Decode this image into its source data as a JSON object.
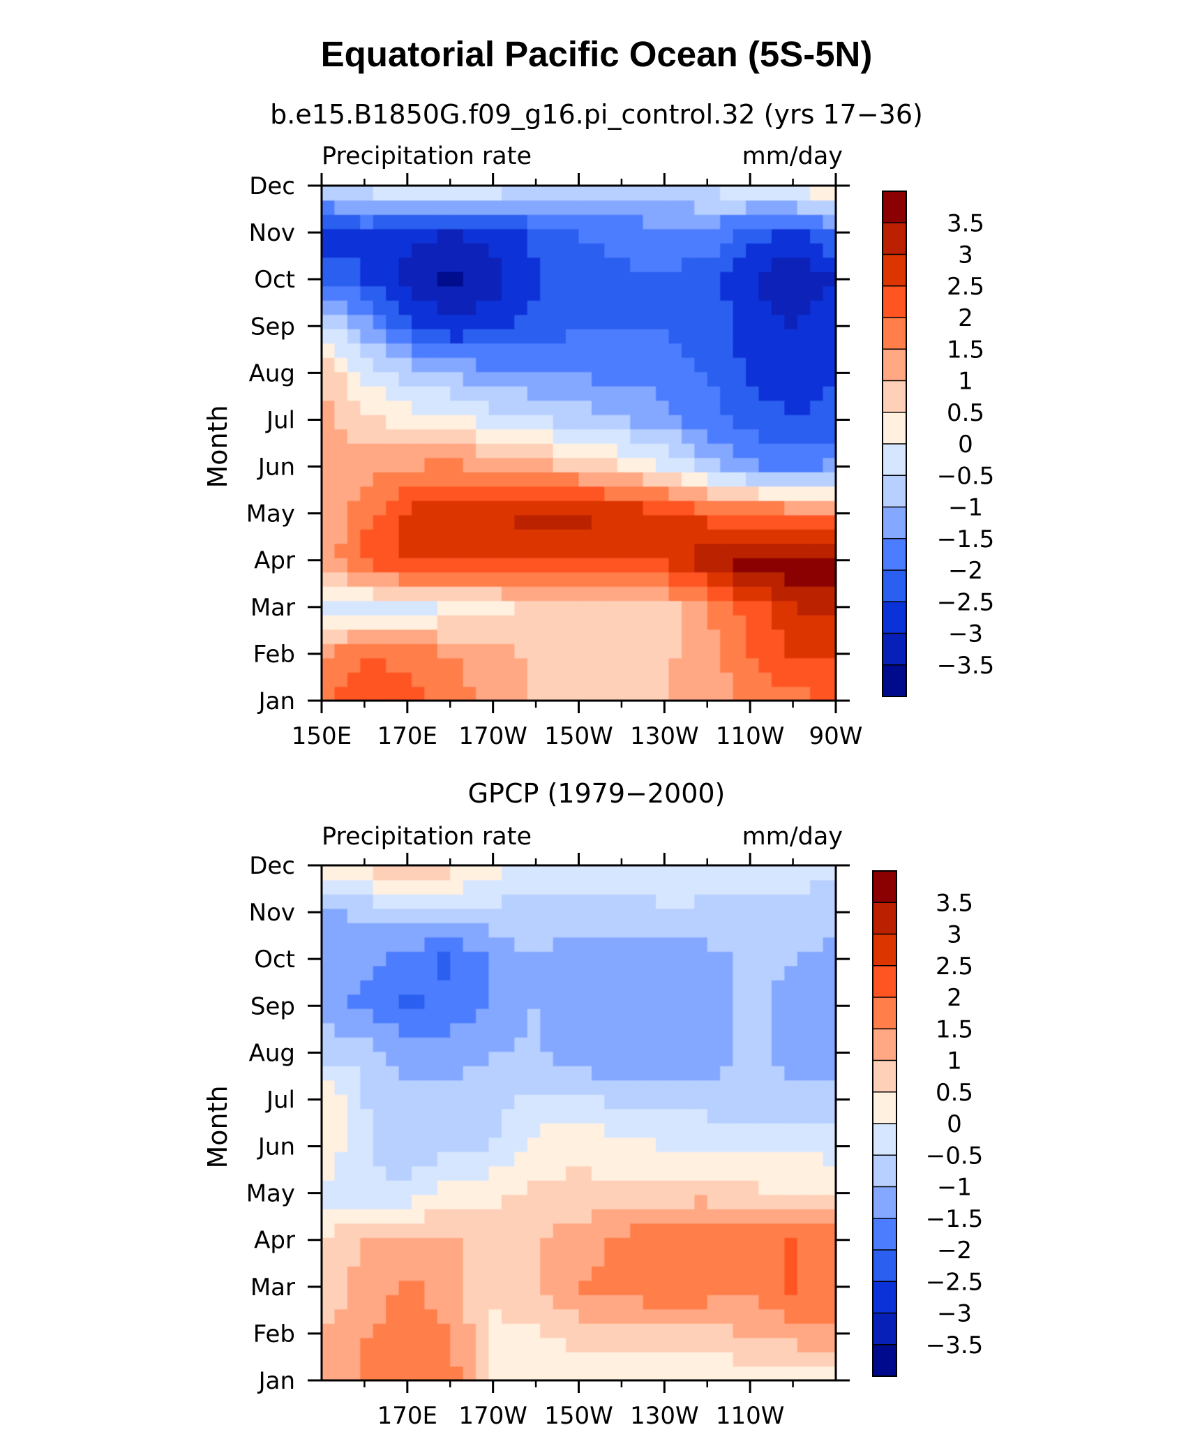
{
  "main_title": "Equatorial Pacific Ocean (5S-5N)",
  "colorbar": {
    "levels": [
      "3.5",
      "3",
      "2.5",
      "2",
      "1.5",
      "1",
      "0.5",
      "0",
      "−0.5",
      "−1",
      "−1.5",
      "−2",
      "−2.5",
      "−3",
      "−3.5"
    ],
    "colors": [
      "#8b0000",
      "#bb2000",
      "#dd3500",
      "#ff5522",
      "#ff7e4a",
      "#ffa883",
      "#ffd0b8",
      "#fff0e0",
      "#d6e6ff",
      "#b8d0ff",
      "#84a8ff",
      "#4d7dff",
      "#2a5ff0",
      "#0b32d8",
      "#0720b8",
      "#000a8c"
    ]
  },
  "chart_data": [
    {
      "type": "heatmap",
      "title": "b.e15.B1850G.f09_g16.pi_control.32 (yrs 17−36)",
      "left_label": "Precipitation rate",
      "right_label": "mm/day",
      "ylabel": "Month",
      "x_tick_labels": [
        "150E",
        "170E",
        "170W",
        "150W",
        "130W",
        "110W",
        "90W"
      ],
      "y_tick_labels": [
        "Jan",
        "Feb",
        "Mar",
        "Apr",
        "May",
        "Jun",
        "Jul",
        "Aug",
        "Sep",
        "Oct",
        "Nov",
        "Dec"
      ],
      "xlim": [
        150,
        270
      ],
      "units": "mm/day",
      "columns": [
        150,
        160,
        170,
        180,
        190,
        200,
        210,
        220,
        230,
        240,
        250,
        260,
        270
      ],
      "values": [
        [
          2.0,
          2.5,
          2.2,
          1.8,
          1.3,
          1.0,
          0.8,
          0.9,
          1.0,
          1.2,
          1.6,
          1.8,
          2.0
        ],
        [
          1.5,
          2.0,
          1.8,
          1.5,
          1.2,
          0.9,
          0.8,
          0.8,
          0.9,
          1.3,
          2.0,
          2.5,
          2.6
        ],
        [
          -0.2,
          -0.3,
          -0.2,
          0.1,
          0.3,
          0.6,
          0.7,
          0.7,
          0.8,
          1.5,
          2.2,
          3.0,
          3.2
        ],
        [
          1.1,
          2.2,
          2.7,
          2.6,
          2.6,
          2.5,
          2.4,
          2.4,
          2.6,
          3.3,
          3.8,
          3.9,
          3.8
        ],
        [
          1.0,
          1.8,
          2.6,
          2.9,
          3.0,
          3.2,
          3.2,
          3.0,
          2.7,
          2.3,
          2.0,
          1.9,
          1.8
        ],
        [
          1.1,
          1.3,
          1.5,
          1.6,
          1.5,
          1.2,
          0.9,
          0.5,
          0.0,
          -0.8,
          -1.4,
          -1.6,
          -1.4
        ],
        [
          1.2,
          0.7,
          0.3,
          0.2,
          -0.3,
          -0.5,
          -0.7,
          -1.0,
          -1.3,
          -1.8,
          -2.3,
          -2.5,
          -2.3
        ],
        [
          1.0,
          -0.2,
          -0.7,
          -1.1,
          -1.3,
          -1.5,
          -1.6,
          -1.6,
          -1.8,
          -2.0,
          -2.6,
          -2.7,
          -2.6
        ],
        [
          -0.2,
          -1.2,
          -2.4,
          -2.9,
          -2.7,
          -2.3,
          -2.0,
          -2.0,
          -2.0,
          -2.2,
          -2.7,
          -3.0,
          -2.6
        ],
        [
          -2.2,
          -2.5,
          -3.2,
          -3.7,
          -3.2,
          -2.6,
          -2.2,
          -2.1,
          -2.1,
          -2.3,
          -2.9,
          -3.5,
          -3.0
        ],
        [
          -3.0,
          -2.5,
          -2.9,
          -3.0,
          -2.8,
          -2.4,
          -2.0,
          -1.8,
          -1.6,
          -1.6,
          -2.3,
          -2.6,
          -2.0
        ],
        [
          -0.6,
          -0.2,
          0.2,
          0.3,
          0.0,
          -0.5,
          -0.7,
          -0.8,
          -0.7,
          -0.4,
          0.1,
          0.3,
          0.6
        ]
      ]
    },
    {
      "type": "heatmap",
      "title": "GPCP (1979−2000)",
      "left_label": "Precipitation rate",
      "right_label": "mm/day",
      "ylabel": "Month",
      "x_tick_labels": [
        "170E",
        "170W",
        "150W",
        "130W",
        "110W"
      ],
      "y_tick_labels": [
        "Jan",
        "Feb",
        "Mar",
        "Apr",
        "May",
        "Jun",
        "Jul",
        "Aug",
        "Sep",
        "Oct",
        "Nov",
        "Dec"
      ],
      "xlim": [
        150,
        270
      ],
      "units": "mm/day",
      "columns": [
        150,
        160,
        170,
        180,
        190,
        200,
        210,
        220,
        230,
        240,
        250,
        260,
        270
      ],
      "values": [
        [
          1.3,
          1.5,
          1.6,
          1.8,
          0.5,
          0.3,
          0.2,
          0.2,
          0.1,
          0.1,
          0.1,
          0.2,
          0.3
        ],
        [
          1.0,
          1.5,
          1.7,
          1.5,
          0.4,
          0.4,
          0.7,
          0.8,
          0.8,
          0.9,
          1.0,
          1.2,
          1.5
        ],
        [
          0.6,
          1.2,
          1.6,
          1.3,
          0.6,
          0.9,
          1.5,
          1.7,
          2.0,
          1.8,
          1.6,
          2.1,
          1.7
        ],
        [
          0.4,
          1.1,
          1.3,
          1.1,
          0.8,
          1.0,
          1.3,
          1.6,
          2.0,
          2.0,
          1.9,
          2.0,
          1.8
        ],
        [
          -0.2,
          -0.4,
          -0.4,
          0.2,
          0.4,
          0.6,
          0.6,
          0.6,
          0.7,
          0.8,
          0.6,
          0.5,
          0.5
        ],
        [
          0.5,
          -0.4,
          -0.8,
          -0.7,
          -0.5,
          0.2,
          0.4,
          0.2,
          0.0,
          -0.1,
          -0.1,
          -0.1,
          -0.2
        ],
        [
          0.6,
          -0.5,
          -0.7,
          -0.8,
          -0.7,
          -0.4,
          -0.4,
          -0.6,
          -0.7,
          -0.7,
          -0.8,
          -0.9,
          -0.8
        ],
        [
          -0.7,
          -0.6,
          -1.3,
          -1.2,
          -1.0,
          -0.9,
          -1.4,
          -1.5,
          -1.5,
          -1.4,
          -0.8,
          -1.2,
          -1.4
        ],
        [
          -1.2,
          -1.7,
          -2.1,
          -1.9,
          -1.4,
          -1.0,
          -1.4,
          -1.3,
          -1.3,
          -1.3,
          -0.9,
          -1.1,
          -1.2
        ],
        [
          -1.4,
          -1.2,
          -1.7,
          -2.1,
          -1.4,
          -1.0,
          -1.3,
          -1.3,
          -1.4,
          -1.2,
          -0.9,
          -1.0,
          -1.2
        ],
        [
          -1.1,
          -0.9,
          -0.8,
          -0.8,
          -0.7,
          -0.7,
          -0.8,
          -0.7,
          -0.5,
          -0.6,
          -0.7,
          -0.7,
          -0.8
        ],
        [
          0.2,
          0.6,
          1.1,
          0.8,
          0.3,
          -0.2,
          -0.2,
          -0.3,
          -0.3,
          -0.3,
          -0.3,
          -0.3,
          -0.3
        ]
      ]
    }
  ]
}
